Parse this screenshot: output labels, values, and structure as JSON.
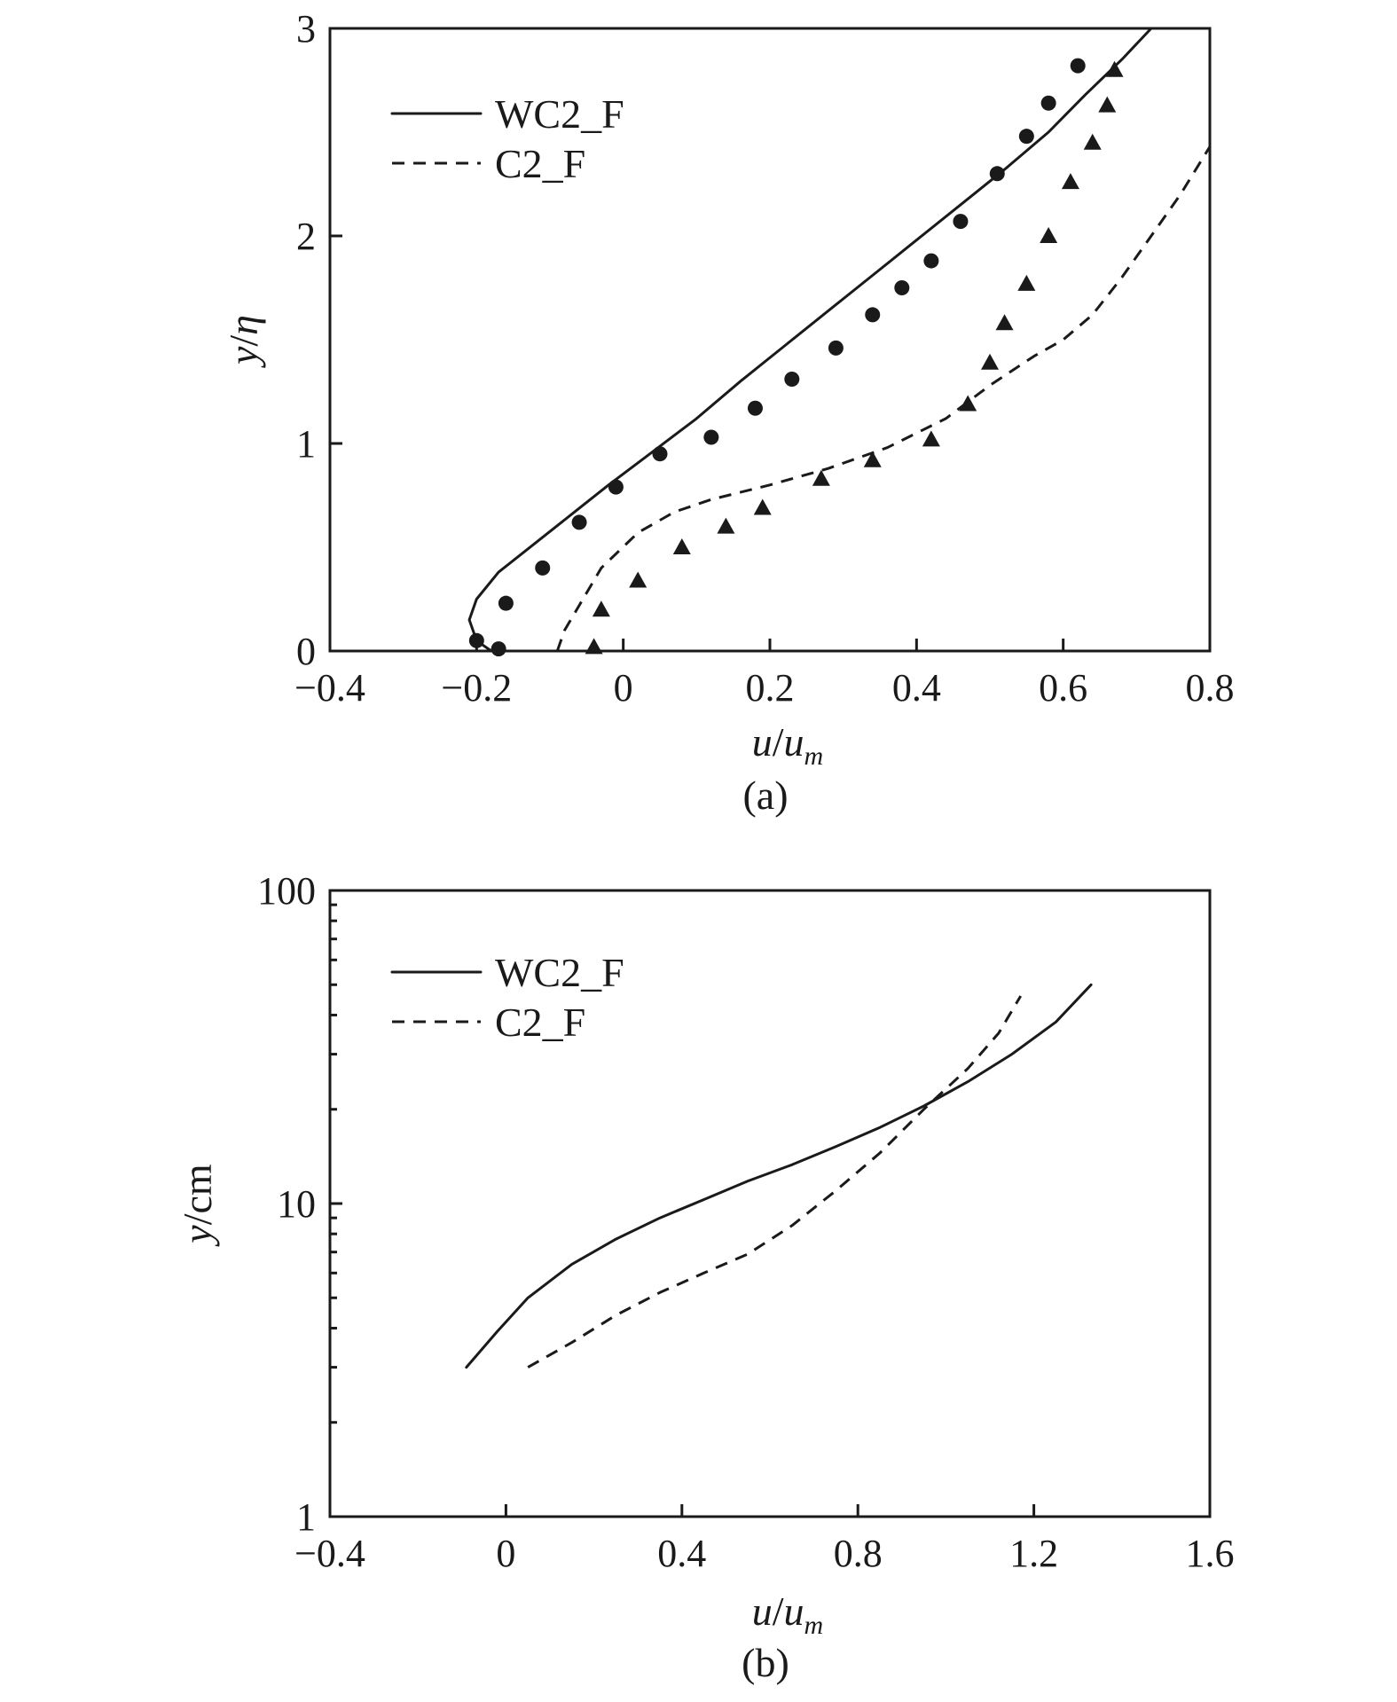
{
  "chart_data": [
    {
      "type": "line",
      "panel_label": "(a)",
      "xlabel": {
        "var": "u",
        "slash": "/",
        "base": "u",
        "sub": "m"
      },
      "ylabel": {
        "var": "y",
        "slash": "/",
        "den": "η"
      },
      "xlim": [
        -0.4,
        0.8
      ],
      "ylim": [
        0,
        3
      ],
      "xticks": [
        -0.4,
        -0.2,
        0,
        0.2,
        0.4,
        0.6,
        0.8
      ],
      "xtick_labels": [
        "−0.4",
        "−0.2",
        "0",
        "0.2",
        "0.4",
        "0.6",
        "0.8"
      ],
      "yticks": [
        0,
        1,
        2,
        3
      ],
      "ytick_labels": [
        "0",
        "1",
        "2",
        "3"
      ],
      "legend_position": "top-left",
      "grid": false,
      "series": [
        {
          "name": "WC2_F",
          "style": "solid",
          "x": [
            -0.18,
            -0.2,
            -0.21,
            -0.2,
            -0.17,
            -0.12,
            -0.07,
            -0.02,
            0.04,
            0.1,
            0.16,
            0.22,
            0.28,
            0.34,
            0.4,
            0.46,
            0.52,
            0.58,
            0.63,
            0.68,
            0.72
          ],
          "y": [
            0,
            0.05,
            0.15,
            0.25,
            0.38,
            0.52,
            0.66,
            0.8,
            0.96,
            1.12,
            1.3,
            1.47,
            1.64,
            1.81,
            1.98,
            2.15,
            2.32,
            2.5,
            2.68,
            2.85,
            3.0
          ]
        },
        {
          "name": "C2_F",
          "style": "dashed",
          "x": [
            -0.09,
            -0.08,
            -0.06,
            -0.03,
            0.02,
            0.07,
            0.12,
            0.2,
            0.28,
            0.36,
            0.44,
            0.5,
            0.56,
            0.6,
            0.64,
            0.68,
            0.72,
            0.76,
            0.8
          ],
          "y": [
            0,
            0.1,
            0.22,
            0.4,
            0.57,
            0.67,
            0.73,
            0.8,
            0.88,
            0.98,
            1.12,
            1.28,
            1.42,
            1.5,
            1.62,
            1.8,
            2.0,
            2.2,
            2.43
          ]
        },
        {
          "name": "",
          "style": "circle-markers",
          "x": [
            -0.2,
            -0.17,
            -0.16,
            -0.11,
            -0.06,
            -0.01,
            0.05,
            0.12,
            0.18,
            0.23,
            0.29,
            0.34,
            0.38,
            0.42,
            0.46,
            0.51,
            0.55,
            0.58,
            0.62
          ],
          "y": [
            0.05,
            0.01,
            0.23,
            0.4,
            0.62,
            0.79,
            0.95,
            1.03,
            1.17,
            1.31,
            1.46,
            1.62,
            1.75,
            1.88,
            2.07,
            2.3,
            2.48,
            2.64,
            2.82
          ]
        },
        {
          "name": "",
          "style": "triangle-markers",
          "x": [
            -0.04,
            -0.03,
            0.02,
            0.08,
            0.14,
            0.19,
            0.27,
            0.34,
            0.42,
            0.47,
            0.5,
            0.52,
            0.55,
            0.58,
            0.61,
            0.64,
            0.66,
            0.67
          ],
          "y": [
            0.02,
            0.2,
            0.34,
            0.5,
            0.6,
            0.69,
            0.83,
            0.92,
            1.02,
            1.19,
            1.39,
            1.58,
            1.77,
            2.0,
            2.26,
            2.45,
            2.63,
            2.8
          ]
        }
      ]
    },
    {
      "type": "line",
      "panel_label": "(b)",
      "xlabel": {
        "var": "u",
        "slash": "/",
        "base": "u",
        "sub": "m"
      },
      "ylabel": {
        "var": "y",
        "slash": "/",
        "den": "cm"
      },
      "xlim": [
        -0.4,
        1.6
      ],
      "ylim": [
        1,
        100
      ],
      "yscale": "log",
      "xticks": [
        -0.4,
        0,
        0.4,
        0.8,
        1.2,
        1.6
      ],
      "xtick_labels": [
        "−0.4",
        "0",
        "0.4",
        "0.8",
        "1.2",
        "1.6"
      ],
      "yticks": [
        1,
        10,
        100
      ],
      "ytick_labels": [
        "1",
        "10",
        "100"
      ],
      "legend_position": "top-left",
      "grid": false,
      "series": [
        {
          "name": "WC2_F",
          "style": "solid",
          "x": [
            -0.09,
            -0.02,
            0.05,
            0.15,
            0.25,
            0.35,
            0.45,
            0.55,
            0.65,
            0.75,
            0.85,
            0.95,
            1.05,
            1.15,
            1.25,
            1.33
          ],
          "y": [
            3.0,
            3.9,
            5.0,
            6.4,
            7.7,
            9.0,
            10.3,
            11.8,
            13.3,
            15.2,
            17.5,
            20.5,
            24.5,
            30.0,
            38.0,
            50.0
          ]
        },
        {
          "name": "C2_F",
          "style": "dashed",
          "x": [
            0.05,
            0.15,
            0.25,
            0.35,
            0.45,
            0.55,
            0.65,
            0.75,
            0.85,
            0.95,
            1.05,
            1.12,
            1.17
          ],
          "y": [
            3.0,
            3.6,
            4.4,
            5.2,
            6.0,
            6.9,
            8.5,
            11.0,
            14.5,
            20.0,
            27.0,
            35.0,
            46.0
          ]
        }
      ]
    }
  ]
}
